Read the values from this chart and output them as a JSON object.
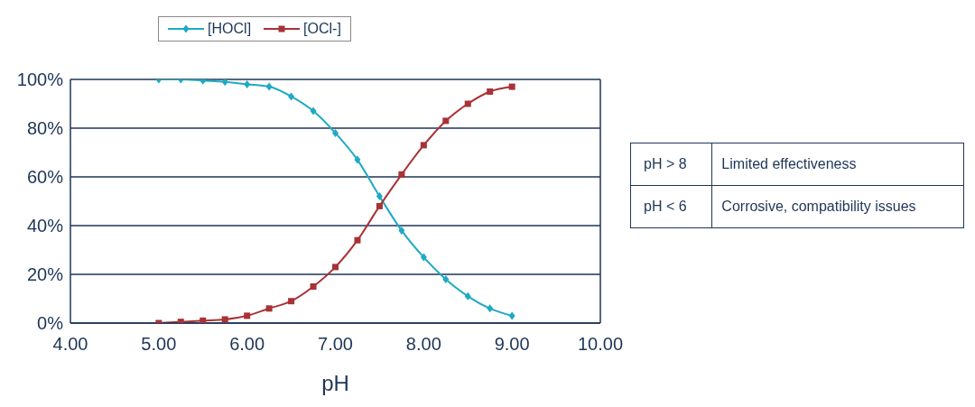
{
  "chart_data": {
    "type": "line",
    "xlabel": "pH",
    "x": [
      5,
      5.25,
      5.5,
      5.75,
      6,
      6.25,
      6.5,
      6.75,
      7,
      7.25,
      7.5,
      7.75,
      8,
      8.25,
      8.5,
      8.75,
      9
    ],
    "series": [
      {
        "name": "[HOCl]",
        "color": "#1fa9c4",
        "marker": "diamond",
        "values": [
          100,
          100,
          99.5,
          99,
          98,
          97,
          93,
          87,
          78,
          67,
          52,
          38,
          27,
          18,
          11,
          6,
          3
        ]
      },
      {
        "name": "[OCl-]",
        "color": "#a83236",
        "marker": "square",
        "values": [
          0,
          0.5,
          1,
          1.5,
          3,
          6,
          9,
          15,
          23,
          34,
          48,
          61,
          73,
          83,
          90,
          95,
          97
        ]
      }
    ],
    "xlim": [
      4,
      10
    ],
    "xticks": [
      {
        "value": 4,
        "label": "4.00"
      },
      {
        "value": 5,
        "label": "5.00"
      },
      {
        "value": 6,
        "label": "6.00"
      },
      {
        "value": 7,
        "label": "7.00"
      },
      {
        "value": 8,
        "label": "8.00"
      },
      {
        "value": 9,
        "label": "9.00"
      },
      {
        "value": 10,
        "label": "10.00"
      }
    ],
    "ylim": [
      0,
      100
    ],
    "yticks": [
      {
        "value": 0,
        "label": "0%"
      },
      {
        "value": 20,
        "label": "20%"
      },
      {
        "value": 40,
        "label": "40%"
      },
      {
        "value": 60,
        "label": "60%"
      },
      {
        "value": 80,
        "label": "80%"
      },
      {
        "value": 100,
        "label": "100%"
      }
    ],
    "grid": "y",
    "legend": "top",
    "line_style": "solid",
    "annotations": [
      "pH > 8",
      "Limited effectiveness",
      "pH < 6",
      "Corrosive, compatibility issues"
    ]
  }
}
